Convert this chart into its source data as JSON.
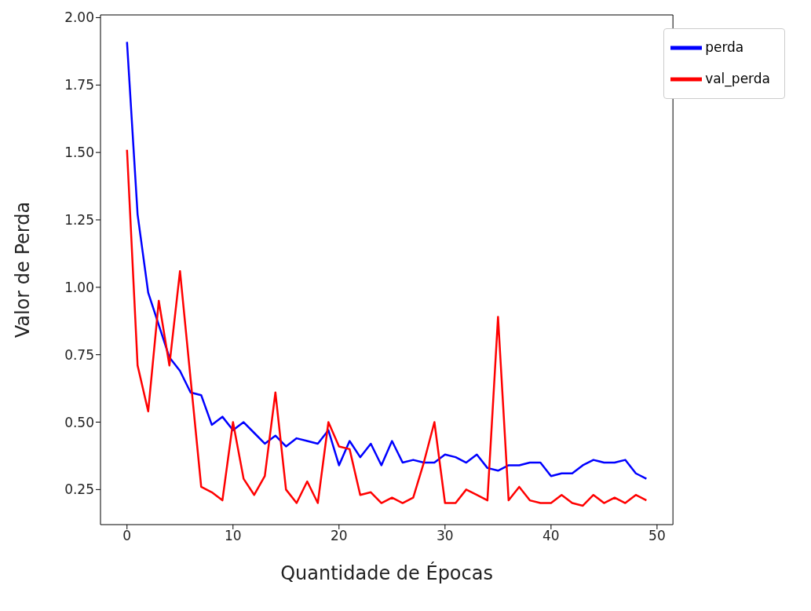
{
  "chart_data": {
    "type": "line",
    "xlabel": "Quantidade de Épocas",
    "ylabel": "Valor de Perda",
    "x": [
      0,
      1,
      2,
      3,
      4,
      5,
      6,
      7,
      8,
      9,
      10,
      11,
      12,
      13,
      14,
      15,
      16,
      17,
      18,
      19,
      20,
      21,
      22,
      23,
      24,
      25,
      26,
      27,
      28,
      29,
      30,
      31,
      32,
      33,
      34,
      35,
      36,
      37,
      38,
      39,
      40,
      41,
      42,
      43,
      44,
      45,
      46,
      47,
      48,
      49
    ],
    "series": [
      {
        "name": "perda",
        "color": "#0000ff",
        "values": [
          1.91,
          1.27,
          0.98,
          0.86,
          0.74,
          0.69,
          0.61,
          0.6,
          0.49,
          0.52,
          0.47,
          0.5,
          0.46,
          0.42,
          0.45,
          0.41,
          0.44,
          0.43,
          0.42,
          0.47,
          0.34,
          0.43,
          0.37,
          0.42,
          0.34,
          0.43,
          0.35,
          0.36,
          0.35,
          0.35,
          0.38,
          0.37,
          0.35,
          0.38,
          0.33,
          0.32,
          0.34,
          0.34,
          0.35,
          0.35,
          0.3,
          0.31,
          0.31,
          0.34,
          0.36,
          0.35,
          0.35,
          0.36,
          0.31,
          0.29
        ]
      },
      {
        "name": "val_perda",
        "color": "#ff0000",
        "values": [
          1.51,
          0.71,
          0.54,
          0.95,
          0.71,
          1.06,
          0.66,
          0.26,
          0.24,
          0.21,
          0.5,
          0.29,
          0.23,
          0.3,
          0.61,
          0.25,
          0.2,
          0.28,
          0.2,
          0.5,
          0.41,
          0.4,
          0.23,
          0.24,
          0.2,
          0.22,
          0.2,
          0.22,
          0.35,
          0.5,
          0.2,
          0.2,
          0.25,
          0.23,
          0.21,
          0.89,
          0.21,
          0.26,
          0.21,
          0.2,
          0.2,
          0.23,
          0.2,
          0.19,
          0.23,
          0.2,
          0.22,
          0.2,
          0.23,
          0.21
        ]
      }
    ],
    "xlim": [
      -2.5,
      51.5
    ],
    "xticks": [
      0,
      10,
      20,
      30,
      40,
      50
    ],
    "ylim": [
      0.12,
      2.01
    ],
    "yticks": [
      {
        "value": 0.25,
        "label": "0.25"
      },
      {
        "value": 0.5,
        "label": "0.50"
      },
      {
        "value": 0.75,
        "label": "0.75"
      },
      {
        "value": 1.0,
        "label": "1.00"
      },
      {
        "value": 1.25,
        "label": "1.25"
      },
      {
        "value": 1.5,
        "label": "1.50"
      },
      {
        "value": 1.75,
        "label": "1.75"
      },
      {
        "value": 2.0,
        "label": "2.00"
      }
    ],
    "grid": false,
    "legend": "top right",
    "marker": "none",
    "line_style": "solid"
  }
}
